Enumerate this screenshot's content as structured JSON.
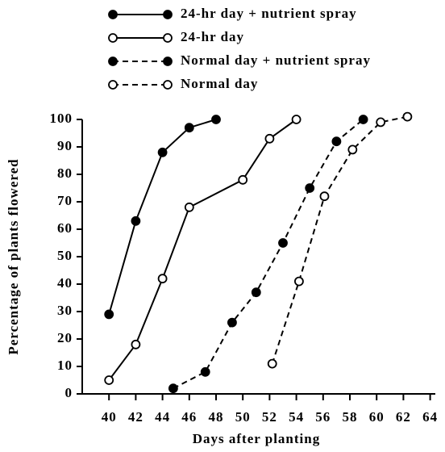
{
  "chart_data": {
    "type": "line",
    "xlabel": "Days after planting",
    "ylabel": "Percentage of plants flowered",
    "xlim": [
      38,
      64
    ],
    "xticks": [
      40,
      42,
      44,
      46,
      48,
      50,
      52,
      54,
      56,
      58,
      60,
      62,
      64
    ],
    "ylim": [
      0,
      100
    ],
    "yticks": [
      0,
      10,
      20,
      30,
      40,
      50,
      60,
      70,
      80,
      90,
      100
    ],
    "legend": "top-left",
    "series": [
      {
        "name": "24-hr day + nutrient spray",
        "color": "#000000",
        "linestyle": "solid",
        "marker": "filled",
        "x": [
          40,
          42,
          44,
          46,
          48
        ],
        "values": [
          29,
          63,
          88,
          97,
          100
        ]
      },
      {
        "name": "24-hr day",
        "color": "#000000",
        "linestyle": "solid",
        "marker": "open",
        "x": [
          40,
          42,
          44,
          46,
          50,
          52,
          54
        ],
        "values": [
          5,
          18,
          42,
          68,
          78,
          93,
          100
        ]
      },
      {
        "name": "Normal day + nutrient spray",
        "color": "#000000",
        "linestyle": "dashed",
        "marker": "filled",
        "x": [
          44.8,
          47.2,
          49.2,
          51,
          53,
          55,
          57,
          59
        ],
        "values": [
          2,
          8,
          26,
          37,
          55,
          75,
          92,
          100
        ]
      },
      {
        "name": "Normal day",
        "color": "#000000",
        "linestyle": "dashed",
        "marker": "open",
        "x": [
          52.2,
          54.2,
          56.1,
          58.2,
          60.3,
          62.3
        ],
        "values": [
          11,
          41,
          72,
          89,
          99,
          101
        ]
      }
    ]
  }
}
